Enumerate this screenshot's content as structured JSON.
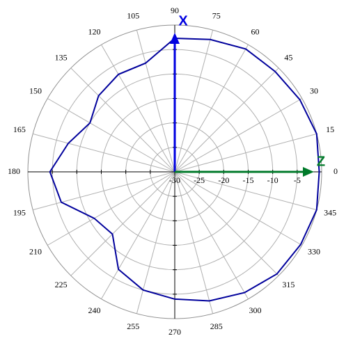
{
  "chart_data": {
    "type": "polar",
    "theta": [
      0,
      15,
      30,
      45,
      60,
      75,
      90,
      105,
      120,
      135,
      150,
      165,
      180,
      195,
      210,
      225,
      240,
      255,
      270,
      285,
      300,
      315,
      330,
      345
    ],
    "values": [
      -0.5,
      0,
      -0.5,
      -1,
      -1,
      -2,
      -2.7,
      -7,
      -7,
      -8,
      -10,
      -7.5,
      -4.5,
      -6,
      -11,
      -12,
      -7,
      -5,
      -4,
      -2.7,
      -1.5,
      -0.5,
      -0.3,
      0
    ],
    "color": "#00009c",
    "rlim": [
      -30,
      0
    ],
    "rticks": [
      -30,
      -25,
      -20,
      -15,
      -10,
      -5
    ],
    "thetaticks": [
      0,
      15,
      30,
      45,
      60,
      75,
      90,
      105,
      120,
      135,
      150,
      165,
      180,
      195,
      210,
      225,
      240,
      255,
      270,
      285,
      300,
      315,
      330,
      345
    ],
    "axis_arrows": [
      {
        "label": "X",
        "angle": 90,
        "color": "#0000e0"
      },
      {
        "label": "Z",
        "angle": 0,
        "color": "#007a2a"
      }
    ]
  }
}
